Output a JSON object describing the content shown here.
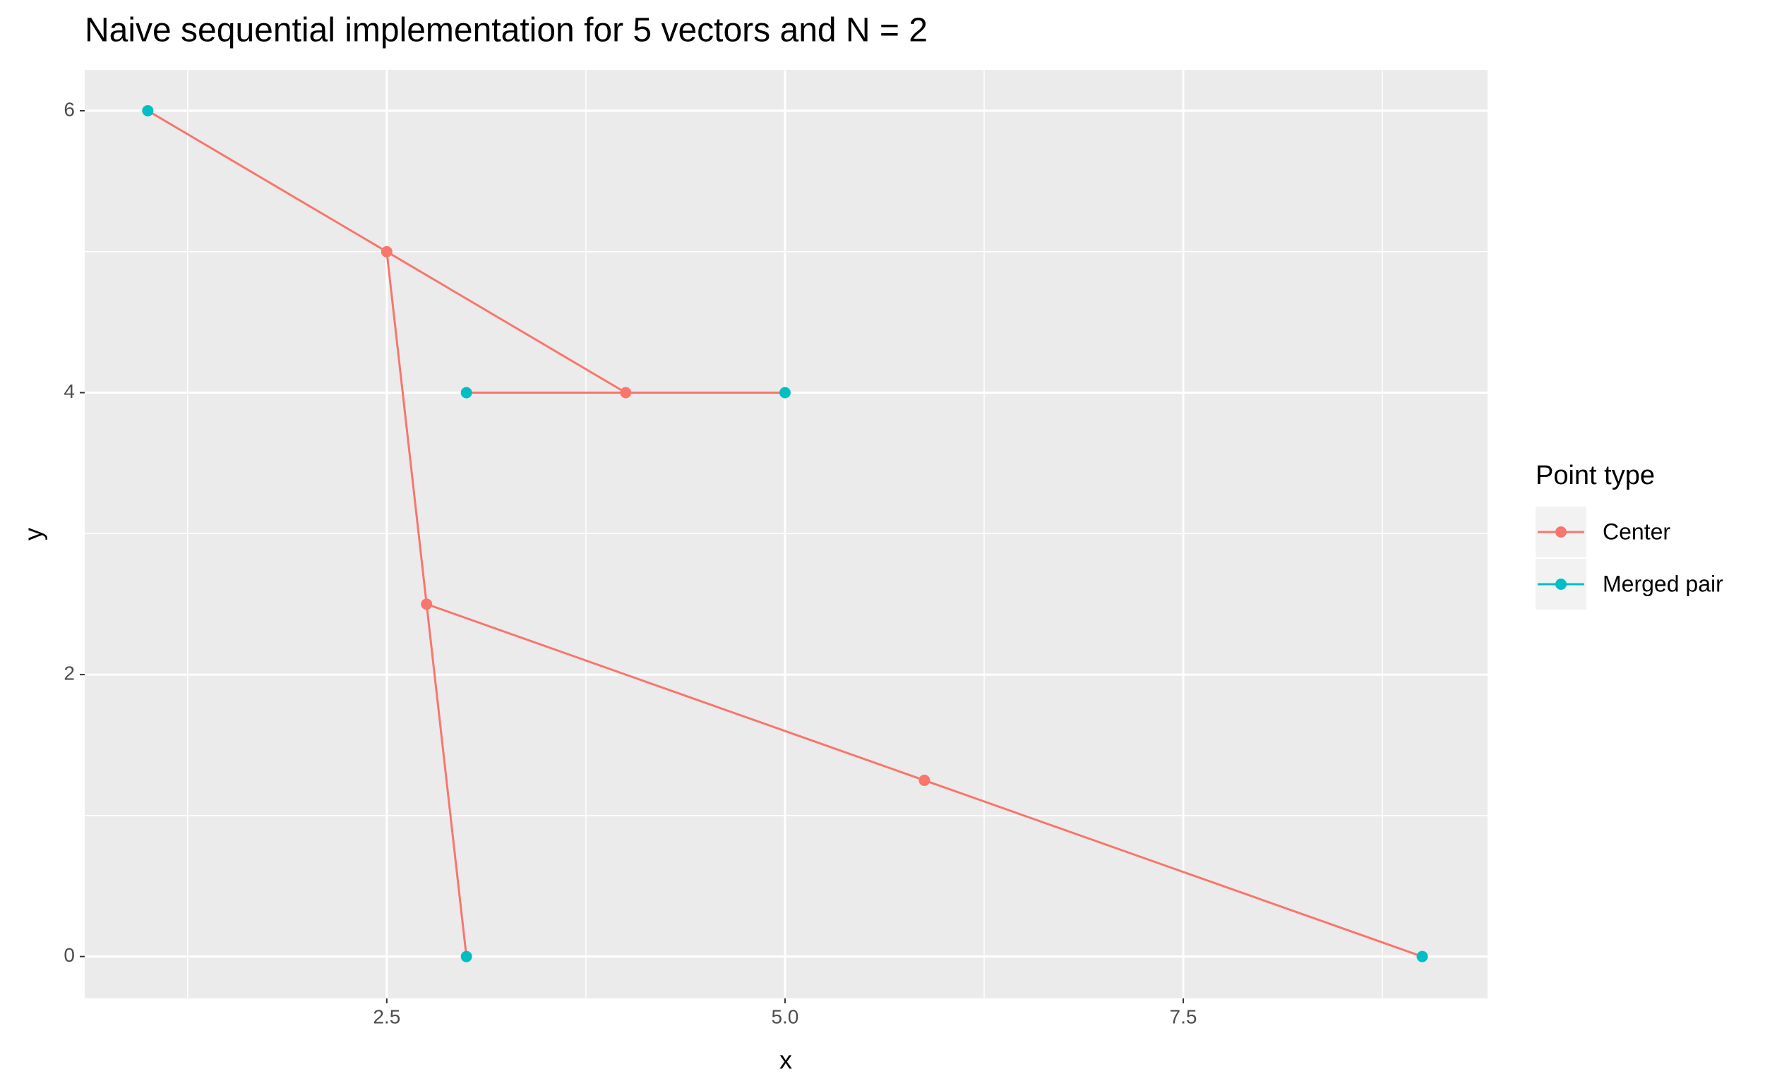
{
  "chart_data": {
    "type": "scatter-line",
    "title": "Naive sequential implementation for 5 vectors and N = 2",
    "x_label": "x",
    "y_label": "y",
    "legend_title": "Point type",
    "legend_position": "right",
    "xlim": [
      0.604,
      9.41
    ],
    "ylim": [
      -0.297,
      6.29
    ],
    "xticks": [
      2.5,
      {
        "value": 5,
        "label": "5.0"
      },
      7.5
    ],
    "yticks": [
      0,
      2,
      4,
      6
    ],
    "x_minor_grid": [
      1.25,
      3.75,
      6.25,
      8.75
    ],
    "y_minor_grid": [
      1,
      3,
      5
    ],
    "grid": true,
    "line_color": "#F8766D",
    "lines": [
      {
        "x": [
          1,
          2.5,
          4
        ],
        "y": [
          6,
          5,
          4
        ]
      },
      {
        "x": [
          3,
          4,
          5
        ],
        "y": [
          4,
          4,
          4
        ]
      },
      {
        "x": [
          2.5,
          2.75,
          3
        ],
        "y": [
          5,
          2.5,
          0
        ]
      },
      {
        "x": [
          2.75,
          5.875,
          9
        ],
        "y": [
          2.5,
          1.25,
          0
        ]
      }
    ],
    "series": [
      {
        "name": "Center",
        "color": "#F8766D",
        "x": [
          2.5,
          4,
          2.75,
          5.875
        ],
        "y": [
          5,
          4,
          2.5,
          1.25
        ]
      },
      {
        "name": "Merged pair",
        "color": "#00BFC4",
        "x": [
          1,
          3,
          5,
          3,
          9
        ],
        "y": [
          6,
          4,
          4,
          0,
          0
        ]
      }
    ]
  }
}
